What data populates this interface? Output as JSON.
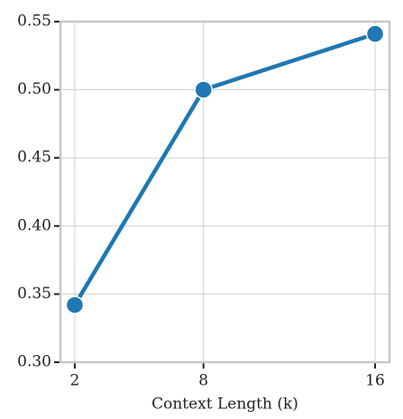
{
  "chart_data": {
    "type": "line",
    "x_label": "Context Length (k)",
    "x": [
      2,
      8,
      16
    ],
    "series": [
      {
        "color": "#1f77b4",
        "values": [
          0.342,
          0.5,
          0.541
        ]
      }
    ],
    "xlim": [
      1.33,
      16.67
    ],
    "xticks": [
      2,
      8,
      16
    ],
    "ylim": [
      0.3,
      0.55
    ],
    "yticks": [
      {
        "value": 0.3,
        "label": "0.30"
      },
      {
        "value": 0.35,
        "label": "0.35"
      },
      {
        "value": 0.4,
        "label": "0.40"
      },
      {
        "value": 0.45,
        "label": "0.45"
      },
      {
        "value": 0.5,
        "label": "0.50"
      },
      {
        "value": 0.55,
        "label": "0.55"
      }
    ],
    "grid": true
  }
}
